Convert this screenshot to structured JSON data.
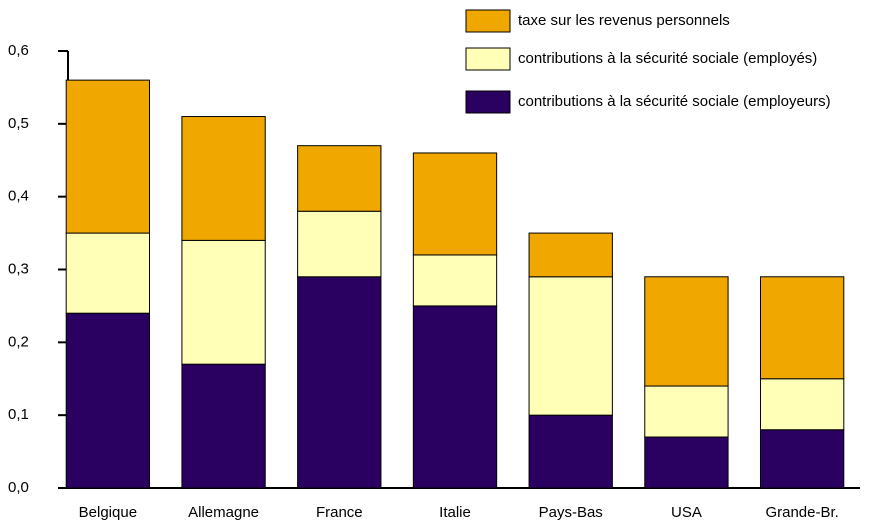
{
  "chart_data": {
    "type": "stacked_bar",
    "categories": [
      "Belgique",
      "Allemagne",
      "France",
      "Italie",
      "Pays-Bas",
      "USA",
      "Grande-Br."
    ],
    "series": [
      {
        "name": "taxe sur les revenus personnels",
        "color": "#f0a800",
        "values": [
          0.21,
          0.17,
          0.09,
          0.14,
          0.06,
          0.15,
          0.14
        ]
      },
      {
        "name": "contributions à la sécurité sociale (employés)",
        "color": "#ffffb8",
        "values": [
          0.11,
          0.17,
          0.09,
          0.07,
          0.19,
          0.07,
          0.07
        ]
      },
      {
        "name": "contributions à la sécurité sociale (employeurs)",
        "color": "#2a0060",
        "values": [
          0.24,
          0.17,
          0.29,
          0.25,
          0.1,
          0.07,
          0.08
        ]
      }
    ],
    "ylim": [
      0,
      0.6
    ],
    "yticks": [
      {
        "value": 0,
        "label": "0,0"
      },
      {
        "value": 0.1,
        "label": "0,1"
      },
      {
        "value": 0.2,
        "label": "0,2"
      },
      {
        "value": 0.3,
        "label": "0,3"
      },
      {
        "value": 0.4,
        "label": "0,4"
      },
      {
        "value": 0.5,
        "label": "0,5"
      },
      {
        "value": 0.6,
        "label": "0,6"
      }
    ],
    "legend": "top-right"
  }
}
